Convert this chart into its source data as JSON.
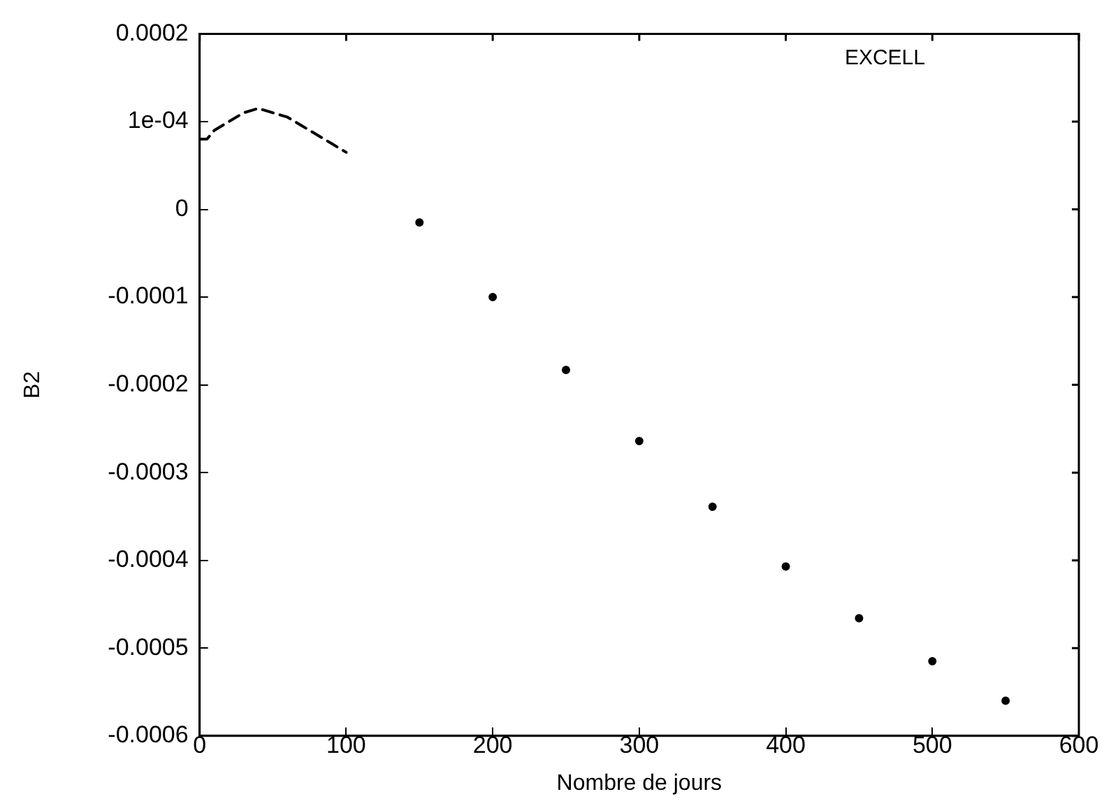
{
  "chart_data": {
    "type": "line",
    "xlabel": "Nombre de jours",
    "ylabel": "B2",
    "annotations": [
      "EXCELL"
    ],
    "xlim": [
      0,
      600
    ],
    "xticks": [
      0,
      100,
      200,
      300,
      400,
      500,
      600
    ],
    "ylim": [
      -0.0006,
      0.0002
    ],
    "yticks": [
      {
        "value": 0.0002,
        "label": "0.0002"
      },
      {
        "value": 0.0001,
        "label": "1e-04"
      },
      0,
      {
        "value": -0.0001,
        "label": "-0.0001"
      },
      {
        "value": -0.0002,
        "label": "-0.0002"
      },
      {
        "value": -0.0003,
        "label": "-0.0003"
      },
      {
        "value": -0.0004,
        "label": "-0.0004"
      },
      {
        "value": -0.0005,
        "label": "-0.0005"
      },
      {
        "value": -0.0006,
        "label": "-0.0006"
      }
    ],
    "grid": false,
    "legend": false,
    "series": [
      {
        "type": "line",
        "line_style": "dashed",
        "marker": "none",
        "color": "#000000",
        "x": [
          0,
          5,
          10,
          20,
          30,
          40,
          50,
          60,
          70,
          80,
          90,
          100
        ],
        "values": [
          8e-05,
          8e-05,
          9e-05,
          0.0001,
          0.00011,
          0.000115,
          0.00011,
          0.000105,
          9.5e-05,
          8.5e-05,
          7.5e-05,
          6.5e-05
        ]
      },
      {
        "type": "scatter",
        "marker": "circle",
        "color": "#000000",
        "x": [
          150,
          200,
          250,
          300,
          350,
          400,
          450,
          500,
          550
        ],
        "values": [
          -1.5e-05,
          -0.0001,
          -0.000183,
          -0.000264,
          -0.000339,
          -0.000407,
          -0.000466,
          -0.000515,
          -0.00056
        ]
      }
    ]
  }
}
